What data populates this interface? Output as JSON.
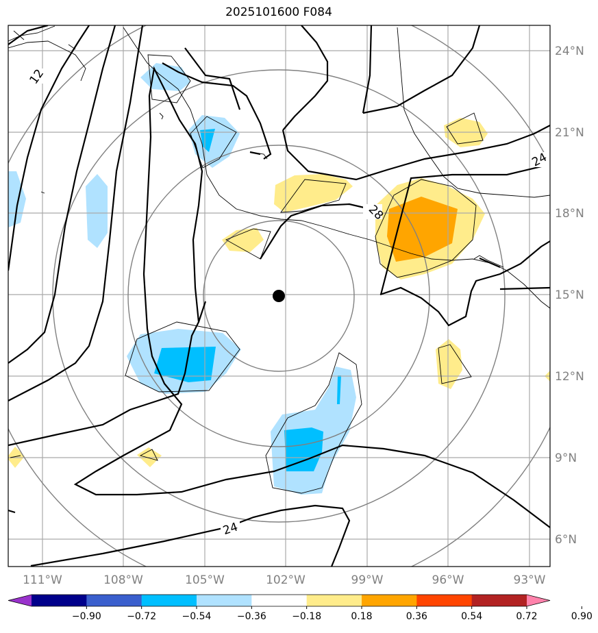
{
  "title": "2025101600 F084",
  "longitude_labels": [
    "111°W",
    "108°W",
    "105°W",
    "102°W",
    "99°W",
    "96°W",
    "93°W"
  ],
  "latitude_labels": [
    "24°N",
    "21°N",
    "18°N",
    "15°N",
    "12°N",
    "9°N",
    "6°N"
  ],
  "contour_labels": [
    "12",
    "24",
    "28",
    "24"
  ],
  "center_marker": {
    "lon": "102.2°W",
    "lat": "15.0°N"
  },
  "colorbar": {
    "ticks": [
      "−0.90",
      "−0.72",
      "−0.54",
      "−0.36",
      "−0.18",
      "0.18",
      "0.36",
      "0.54",
      "0.72",
      "0.90"
    ],
    "colors": [
      "#9932cc",
      "#00008b",
      "#3a5fcd",
      "#00bfff",
      "#b0e2ff",
      "#ffffff",
      "#ffec8b",
      "#ffa500",
      "#ff4500",
      "#b22222",
      "#ff82ab"
    ]
  }
}
